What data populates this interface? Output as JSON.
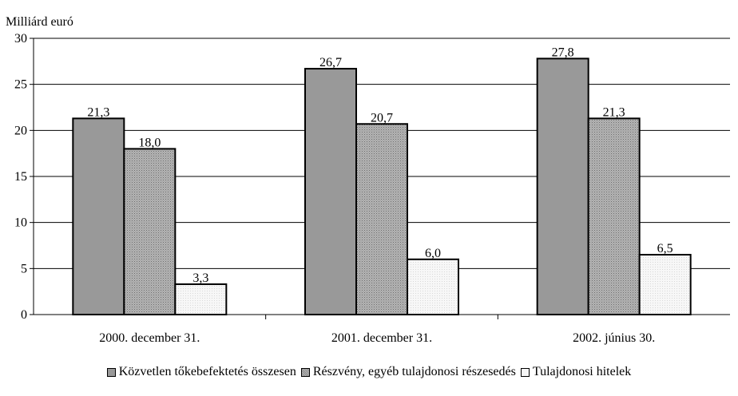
{
  "chart_data": {
    "type": "bar",
    "unit_label": "Milliárd euró",
    "categories": [
      "2000. december 31.",
      "2001. december 31.",
      "2002. június 30."
    ],
    "series": [
      {
        "name": "Közvetlen tőkebefektetés összesen",
        "values": [
          21.3,
          26.7,
          27.8
        ],
        "labels": [
          "21,3",
          "26,7",
          "27,8"
        ],
        "color": "#999999"
      },
      {
        "name": "Részvény, egyéb tulajdonosi részesedés",
        "values": [
          18.0,
          20.7,
          21.3
        ],
        "labels": [
          "18,0",
          "20,7",
          "21,3"
        ],
        "color": "#b0b0b0"
      },
      {
        "name": "Tulajdonosi hitelek",
        "values": [
          3.3,
          6.0,
          6.5
        ],
        "labels": [
          "3,3",
          "6,0",
          "6,5"
        ],
        "color": "#f4f4f4"
      }
    ],
    "ylim": [
      0,
      30
    ],
    "yticks": [
      "0",
      "5",
      "10",
      "15",
      "20",
      "25",
      "30"
    ],
    "grid": true,
    "legend_position": "bottom"
  }
}
